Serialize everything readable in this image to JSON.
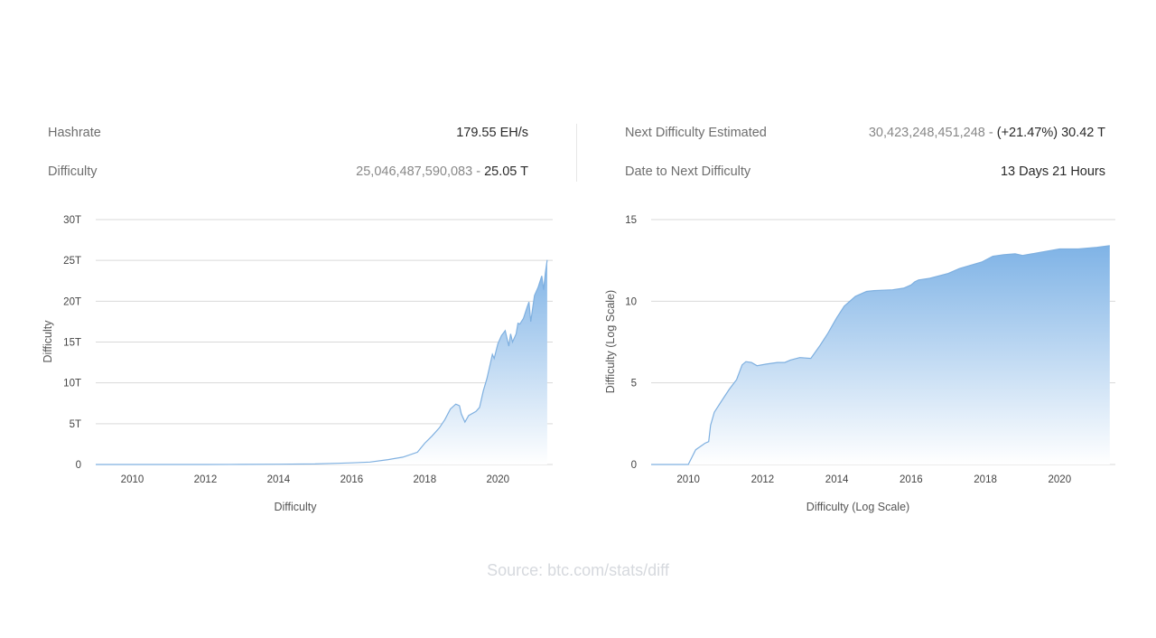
{
  "stats": {
    "left": [
      {
        "label": "Hashrate",
        "value_plain": "",
        "value_strong": "179.55 EH/s"
      },
      {
        "label": "Difficulty",
        "value_plain": "25,046,487,590,083 - ",
        "value_strong": "25.05 T"
      }
    ],
    "right": [
      {
        "label": "Next Difficulty Estimated",
        "value_plain": "30,423,248,451,248 - ",
        "value_strong": "(+21.47%) 30.42 T"
      },
      {
        "label": "Date to Next Difficulty",
        "value_plain": "",
        "value_strong": "13 Days 21 Hours"
      }
    ]
  },
  "source": "Source: btc.com/stats/diff",
  "colors": {
    "fill_top": "#7fb3e6",
    "fill_bottom": "#ffffff",
    "line": "#7fb0e0",
    "grid": "#d9d9d9"
  },
  "chart_data": [
    {
      "type": "area",
      "title": "",
      "xlabel": "Difficulty",
      "ylabel": "Difficulty",
      "grid": true,
      "xlim": [
        2009.0,
        2021.5
      ],
      "ylim": [
        0,
        30
      ],
      "x_ticks": [
        2010,
        2012,
        2014,
        2016,
        2018,
        2020
      ],
      "x_tick_labels": [
        "2010",
        "2012",
        "2014",
        "2016",
        "2018",
        "2020"
      ],
      "y_ticks": [
        0,
        5,
        10,
        15,
        20,
        25,
        30
      ],
      "y_tick_labels": [
        "0",
        "5T",
        "10T",
        "15T",
        "20T",
        "25T",
        "30T"
      ],
      "series": [
        {
          "x": [
            2009.0,
            2010.0,
            2011.0,
            2012.0,
            2013.0,
            2014.0,
            2015.0,
            2016.0,
            2016.5,
            2017.0,
            2017.4,
            2017.8,
            2018.0,
            2018.2,
            2018.4,
            2018.55,
            2018.7,
            2018.85,
            2018.95,
            2019.0,
            2019.1,
            2019.2,
            2019.4,
            2019.5,
            2019.6,
            2019.7,
            2019.8,
            2019.85,
            2019.9,
            2020.0,
            2020.1,
            2020.2,
            2020.3,
            2020.35,
            2020.4,
            2020.5,
            2020.55,
            2020.6,
            2020.7,
            2020.8,
            2020.85,
            2020.9,
            2021.0,
            2021.1,
            2021.2,
            2021.25,
            2021.3,
            2021.35
          ],
          "y": [
            0,
            0,
            0,
            0,
            0.01,
            0.03,
            0.07,
            0.2,
            0.3,
            0.6,
            0.9,
            1.5,
            2.6,
            3.5,
            4.5,
            5.5,
            6.8,
            7.4,
            7.2,
            6.2,
            5.2,
            6.0,
            6.5,
            7.0,
            9.0,
            10.5,
            12.5,
            13.5,
            13.0,
            14.8,
            15.8,
            16.4,
            14.5,
            16.0,
            15.0,
            16.0,
            17.3,
            17.2,
            17.9,
            19.3,
            19.9,
            17.5,
            20.7,
            21.7,
            23.1,
            21.4,
            23.5,
            25.05
          ]
        }
      ]
    },
    {
      "type": "area",
      "title": "",
      "xlabel": "Difficulty (Log Scale)",
      "ylabel": "Difficulty (Log Scale)",
      "grid": true,
      "xlim": [
        2009.0,
        2021.5
      ],
      "ylim": [
        0,
        15
      ],
      "x_ticks": [
        2010,
        2012,
        2014,
        2016,
        2018,
        2020
      ],
      "x_tick_labels": [
        "2010",
        "2012",
        "2014",
        "2016",
        "2018",
        "2020"
      ],
      "y_ticks": [
        0,
        5,
        10,
        15
      ],
      "y_tick_labels": [
        "0",
        "5",
        "10",
        "15"
      ],
      "series": [
        {
          "x": [
            2009.0,
            2009.9,
            2010.0,
            2010.2,
            2010.45,
            2010.55,
            2010.6,
            2010.7,
            2010.9,
            2011.1,
            2011.3,
            2011.45,
            2011.55,
            2011.7,
            2011.85,
            2012.1,
            2012.4,
            2012.6,
            2012.75,
            2013.0,
            2013.3,
            2013.55,
            2013.75,
            2013.9,
            2014.0,
            2014.2,
            2014.5,
            2014.8,
            2015.0,
            2015.5,
            2015.8,
            2016.0,
            2016.1,
            2016.2,
            2016.5,
            2017.0,
            2017.3,
            2017.6,
            2017.9,
            2018.2,
            2018.5,
            2018.8,
            2019.0,
            2019.5,
            2020.0,
            2020.5,
            2021.0,
            2021.35
          ],
          "y": [
            0,
            0,
            0,
            0.9,
            1.3,
            1.4,
            2.4,
            3.2,
            3.9,
            4.6,
            5.2,
            6.1,
            6.3,
            6.25,
            6.05,
            6.15,
            6.25,
            6.25,
            6.4,
            6.55,
            6.5,
            7.3,
            8.0,
            8.6,
            9.0,
            9.7,
            10.3,
            10.6,
            10.65,
            10.7,
            10.8,
            11.0,
            11.2,
            11.3,
            11.4,
            11.7,
            12.0,
            12.2,
            12.4,
            12.75,
            12.85,
            12.9,
            12.8,
            13.0,
            13.2,
            13.2,
            13.3,
            13.4
          ]
        }
      ]
    }
  ]
}
